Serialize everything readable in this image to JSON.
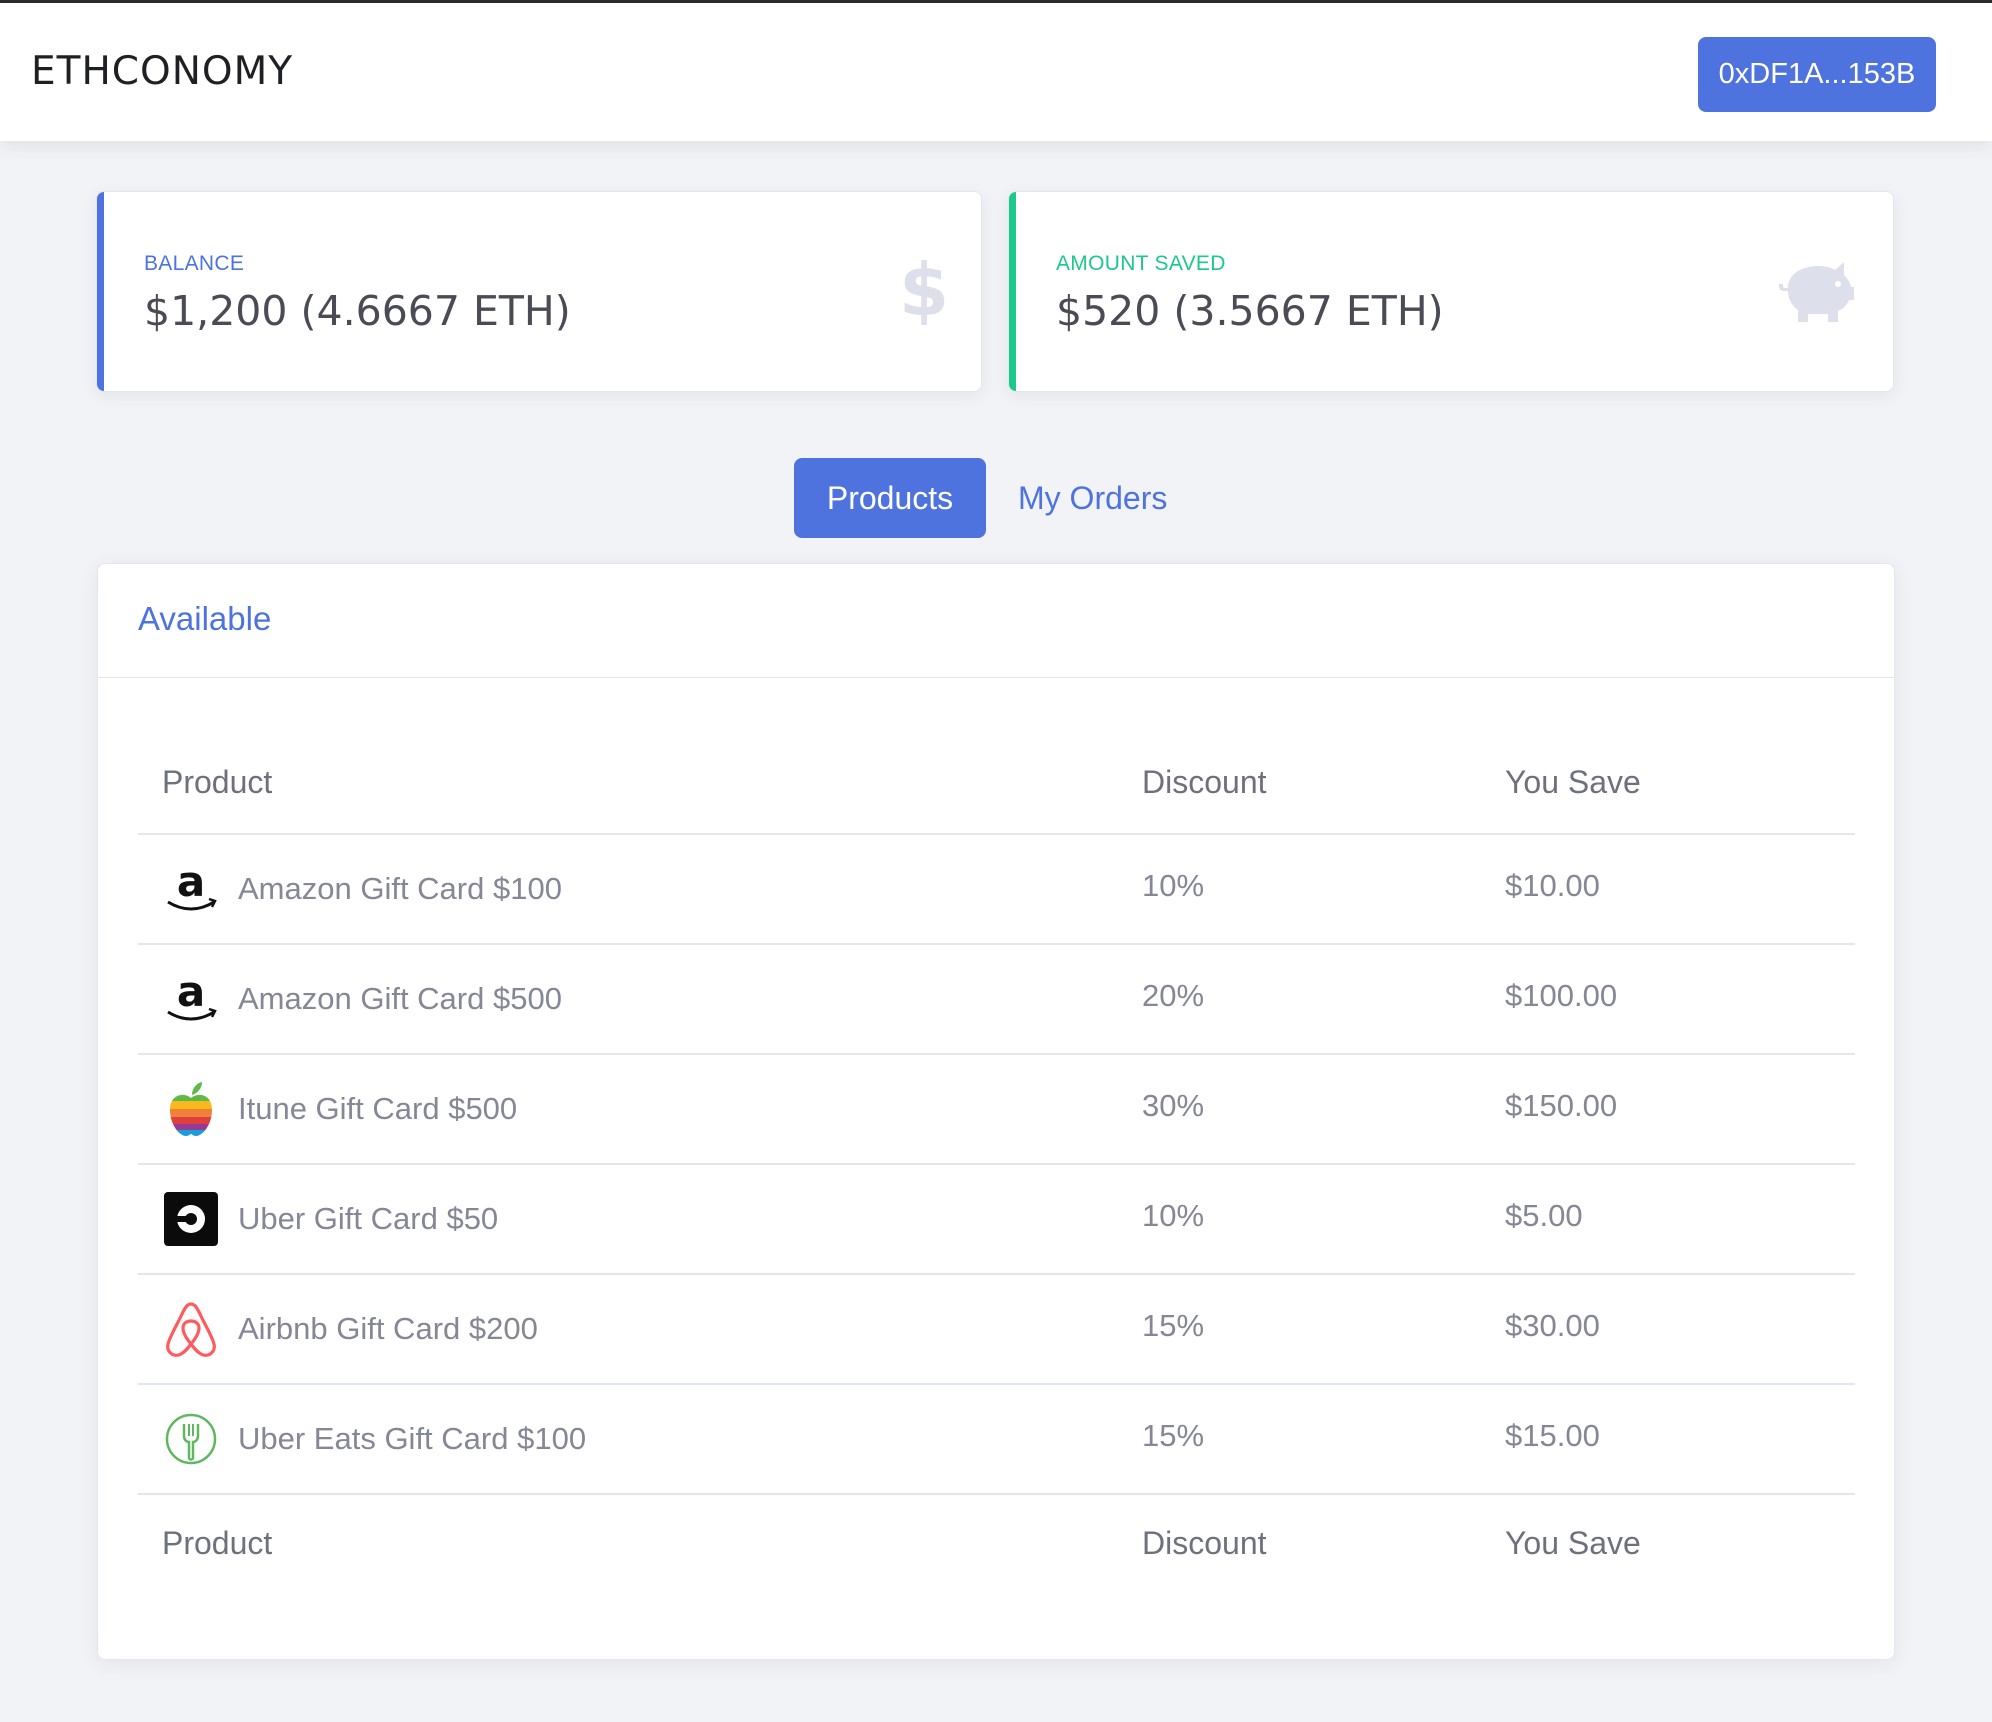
{
  "header": {
    "brand": "ETHCONOMY",
    "wallet_address": "0xDF1A...153B"
  },
  "stats": {
    "balance": {
      "label": "BALANCE",
      "value": "$1,200 (4.6667 ETH)",
      "icon": "dollar-icon",
      "accent_color": "#4e73df"
    },
    "saved": {
      "label": "AMOUNT SAVED",
      "value": "$520 (3.5667 ETH)",
      "icon": "piggy-bank-icon",
      "accent_color": "#1cc88a"
    }
  },
  "tabs": {
    "products": "Products",
    "orders": "My Orders",
    "active": "products"
  },
  "panel": {
    "title": "Available"
  },
  "table": {
    "columns": [
      "Product",
      "Discount",
      "You Save"
    ],
    "rows": [
      {
        "icon": "amazon-logo-icon",
        "product": "Amazon Gift Card $100",
        "discount": "10%",
        "save": "$10.00"
      },
      {
        "icon": "amazon-logo-icon",
        "product": "Amazon Gift Card $500",
        "discount": "20%",
        "save": "$100.00"
      },
      {
        "icon": "apple-logo-icon",
        "product": "Itune Gift Card $500",
        "discount": "30%",
        "save": "$150.00"
      },
      {
        "icon": "uber-logo-icon",
        "product": "Uber Gift Card $50",
        "discount": "10%",
        "save": "$5.00"
      },
      {
        "icon": "airbnb-logo-icon",
        "product": "Airbnb Gift Card $200",
        "discount": "15%",
        "save": "$30.00"
      },
      {
        "icon": "uber-eats-logo-icon",
        "product": "Uber Eats Gift Card $100",
        "discount": "15%",
        "save": "$15.00"
      }
    ]
  },
  "colors": {
    "primary": "#4e73df",
    "success": "#1cc88a",
    "background": "#f2f3f7"
  }
}
